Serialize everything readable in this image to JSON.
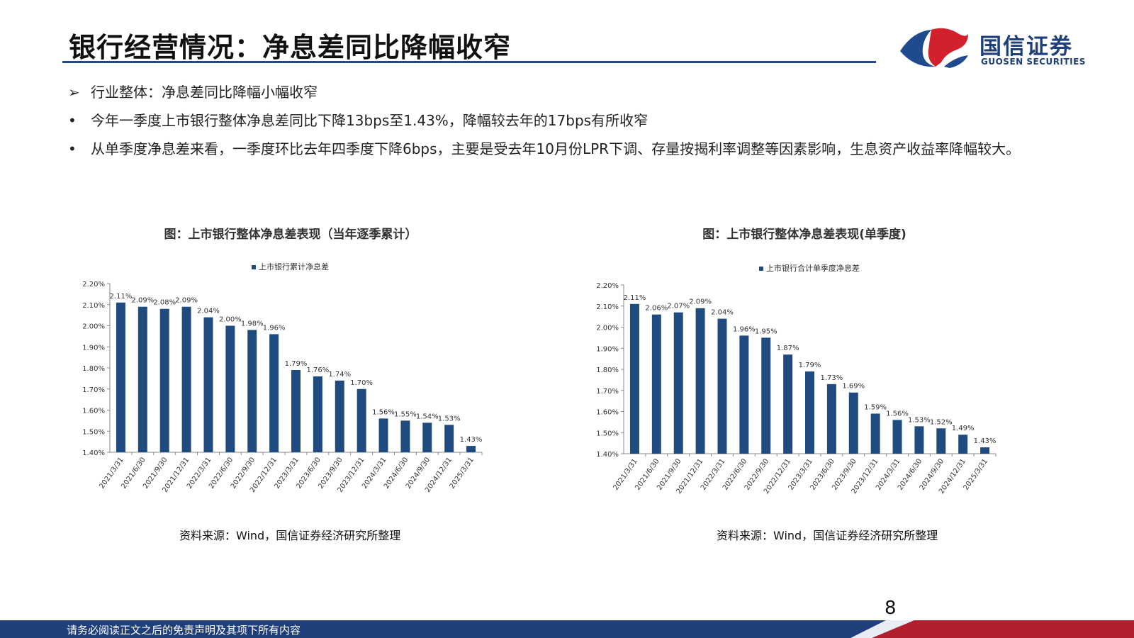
{
  "header": {
    "title": "银行经营情况：净息差同比降幅收窄",
    "logo_cn": "国信证券",
    "logo_en": "GUOSEN SECURITIES"
  },
  "bullets": [
    {
      "marker": "➢",
      "text": "行业整体：净息差同比降幅小幅收窄"
    },
    {
      "marker": "•",
      "text": "今年一季度上市银行整体净息差同比下降13bps至1.43%，降幅较去年的17bps有所收窄"
    },
    {
      "marker": "•",
      "text": "从单季度净息差来看，一季度环比去年四季度下降6bps，主要是受去年10月份LPR下调、存量按揭利率调整等因素影响，生息资产收益率降幅较大。"
    }
  ],
  "charts": {
    "left": {
      "source": "资料来源：Wind，国信证券经济研究所整理"
    },
    "right": {
      "source": "资料来源：Wind，国信证券经济研究所整理"
    }
  },
  "chart_data": [
    {
      "type": "bar",
      "title": "图：上市银行整体净息差表现（当年逐季累计）",
      "series": [
        {
          "name": "上市银行累计净息差",
          "values": [
            2.11,
            2.09,
            2.08,
            2.09,
            2.04,
            2.0,
            1.98,
            1.96,
            1.79,
            1.76,
            1.74,
            1.7,
            1.56,
            1.55,
            1.54,
            1.53,
            1.43
          ]
        }
      ],
      "categories": [
        "2021/3/31",
        "2021/6/30",
        "2021/9/30",
        "2021/12/31",
        "2022/3/31",
        "2022/6/30",
        "2022/9/30",
        "2022/12/31",
        "2023/3/31",
        "2023/6/30",
        "2023/9/30",
        "2023/12/31",
        "2024/3/31",
        "2024/6/30",
        "2024/9/30",
        "2024/12/31",
        "2025/3/31"
      ],
      "labels": [
        "2.11%",
        "2.09%",
        "2.08%",
        "2.09%",
        "2.04%",
        "2.00%",
        "1.98%",
        "1.96%",
        "1.79%",
        "1.76%",
        "1.74%",
        "1.70%",
        "1.56%",
        "1.55%",
        "1.54%",
        "1.53%",
        "1.43%"
      ],
      "yticks": [
        "1.40%",
        "1.50%",
        "1.60%",
        "1.70%",
        "1.80%",
        "1.90%",
        "2.00%",
        "2.10%",
        "2.20%"
      ],
      "ylim": [
        1.4,
        2.2
      ],
      "color": "#1f4b7e",
      "legend": "top-center",
      "grid": false
    },
    {
      "type": "bar",
      "title": "图：上市银行整体净息差表现(单季度)",
      "series": [
        {
          "name": "上市银行合计单季度净息差",
          "values": [
            2.11,
            2.06,
            2.07,
            2.09,
            2.04,
            1.96,
            1.95,
            1.87,
            1.79,
            1.73,
            1.69,
            1.59,
            1.56,
            1.53,
            1.52,
            1.49,
            1.43
          ]
        }
      ],
      "categories": [
        "2021/3/31",
        "2021/6/30",
        "2021/9/30",
        "2021/12/31",
        "2022/3/31",
        "2022/6/30",
        "2022/9/30",
        "2022/12/31",
        "2023/3/31",
        "2023/6/30",
        "2023/9/30",
        "2023/12/31",
        "2024/3/31",
        "2024/6/30",
        "2024/9/30",
        "2024/12/31",
        "2025/3/31"
      ],
      "labels": [
        "2.11%",
        "2.06%",
        "2.07%",
        "2.09%",
        "2.04%",
        "1.96%",
        "1.95%",
        "1.87%",
        "1.79%",
        "1.73%",
        "1.69%",
        "1.59%",
        "1.56%",
        "1.53%",
        "1.52%",
        "1.49%",
        "1.43%"
      ],
      "yticks": [
        "1.40%",
        "1.50%",
        "1.60%",
        "1.70%",
        "1.80%",
        "1.90%",
        "2.00%",
        "2.10%",
        "2.20%"
      ],
      "ylim": [
        1.4,
        2.2
      ],
      "color": "#1f4b7e",
      "legend": "top-center",
      "grid": false
    }
  ],
  "footer": {
    "disclaimer": "请务必阅读正文之后的免责声明及其项下所有内容",
    "page": "8"
  }
}
